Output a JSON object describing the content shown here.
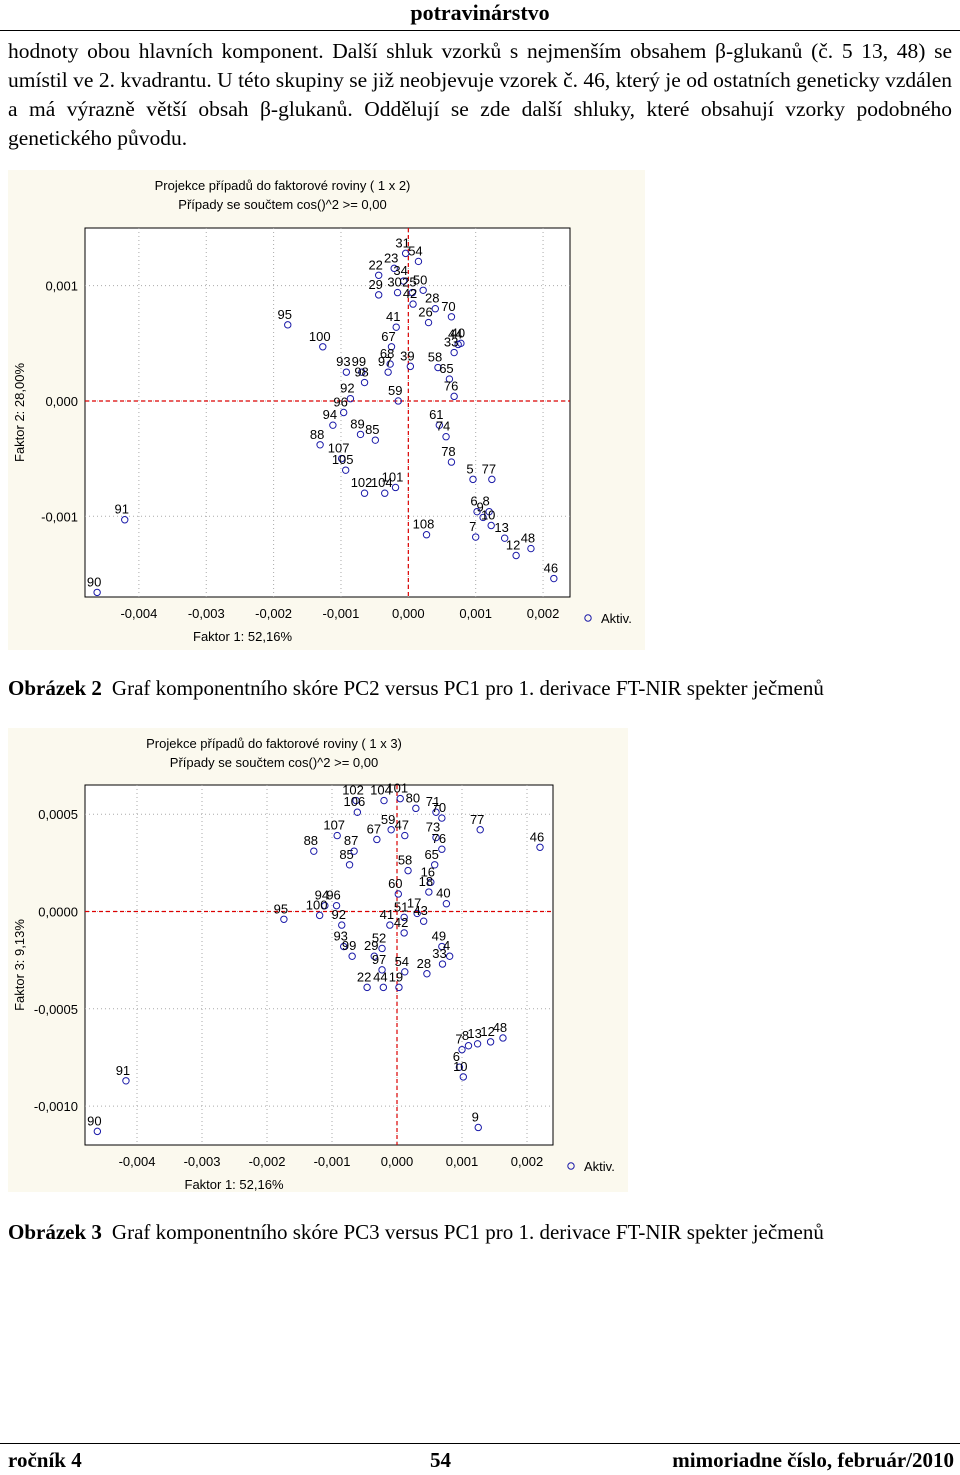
{
  "header": {
    "title": "potravinárstvo"
  },
  "paragraph": "hodnoty obou hlavních komponent. Další shluk vzorků s nejmenším obsahem β-glukanů (č. 5 13, 48) se umístil ve 2. kvadrantu. U této skupiny se již neobjevuje vzorek č. 46, který je od ostatních geneticky vzdálen a má výrazně větší obsah β-glukanů. Oddělují se zde další shluky, které obsahují vzorky podobného genetického původu.",
  "chart_data": [
    {
      "type": "scatter",
      "title": "Projekce případů do faktorové roviny      ( 1 x  2)",
      "subtitle": "Případy se součtem cos()^2  >=    0,00",
      "x_label": "Faktor 1: 52,16%",
      "y_label": "Faktor 2: 28,00%",
      "xlim": [
        -0.0048,
        0.0024
      ],
      "ylim": [
        -0.0017,
        0.0015
      ],
      "grid": true,
      "legend": "right",
      "xticks": [
        {
          "value": -0.004,
          "label": "-0,004"
        },
        {
          "value": -0.003,
          "label": "-0,003"
        },
        {
          "value": -0.002,
          "label": "-0,002"
        },
        {
          "value": -0.001,
          "label": "-0,001"
        },
        {
          "value": 0,
          "label": "0,000"
        },
        {
          "value": 0.001,
          "label": "0,001"
        },
        {
          "value": 0.002,
          "label": "0,002"
        }
      ],
      "yticks": [
        {
          "value": -0.001,
          "label": "-0,001"
        },
        {
          "value": 0,
          "label": "0,000"
        },
        {
          "value": 0.001,
          "label": "0,001"
        }
      ],
      "series": [
        {
          "name": "Aktiv.",
          "color": "#1a1aa8",
          "labels": [
            "31",
            "54",
            "22",
            "23",
            "34",
            "50",
            "29",
            "30",
            "25",
            "42",
            "28",
            "70",
            "26",
            "41",
            "40",
            "67",
            "44",
            "33",
            "68",
            "97",
            "39",
            "58",
            "65",
            "93",
            "99",
            "98",
            "76",
            "92",
            "59",
            "96",
            "94",
            "61",
            "89",
            "85",
            "74",
            "88",
            "107",
            "78",
            "105",
            "5",
            "77",
            "101",
            "102",
            "104",
            "6",
            "8",
            "9",
            "10",
            "108",
            "7",
            "13",
            "12",
            "48",
            "46",
            "91",
            "90",
            "95",
            "100"
          ],
          "x": [
            -4e-05,
            0.00015,
            -0.00044,
            -0.00021,
            -7e-05,
            0.00022,
            -0.00044,
            -0.00016,
            6e-05,
            7e-05,
            0.0004,
            0.00064,
            0.0003,
            -0.00018,
            0.00078,
            -0.00025,
            0.00074,
            0.00068,
            -0.00027,
            -0.0003,
            3e-05,
            0.00044,
            0.00061,
            -0.00092,
            -0.00069,
            -0.00065,
            0.00068,
            -0.00086,
            -0.00015,
            -0.00096,
            -0.00112,
            0.00046,
            -0.00071,
            -0.00049,
            0.00056,
            -0.00131,
            -0.00099,
            0.00064,
            -0.00093,
            0.00096,
            0.00124,
            -0.00019,
            -0.00065,
            -0.00035,
            0.00102,
            0.0012,
            0.00111,
            0.00123,
            0.00027,
            0.001,
            0.00143,
            0.0016,
            0.00182,
            0.00216,
            -0.00421,
            -0.00462,
            -0.00179,
            -0.00127
          ],
          "values": [
            0.00128,
            0.00121,
            0.00109,
            0.00115,
            0.00104,
            0.00096,
            0.00092,
            0.00094,
            0.00094,
            0.00084,
            0.0008,
            0.00073,
            0.00068,
            0.00064,
            0.0005,
            0.00047,
            0.00049,
            0.00042,
            0.00032,
            0.00025,
            0.0003,
            0.00029,
            0.00019,
            0.00025,
            0.00025,
            0.00016,
            4e-05,
            2e-05,
            0,
            -0.0001,
            -0.00021,
            -0.00021,
            -0.00029,
            -0.00034,
            -0.00031,
            -0.00038,
            -0.0005,
            -0.00053,
            -0.0006,
            -0.00068,
            -0.00068,
            -0.00075,
            -0.0008,
            -0.0008,
            -0.00096,
            -0.00096,
            -0.00101,
            -0.00108,
            -0.00116,
            -0.00118,
            -0.00119,
            -0.00134,
            -0.00128,
            -0.00154,
            -0.00103,
            -0.00166,
            0.00066,
            0.00047
          ]
        }
      ]
    },
    {
      "type": "scatter",
      "title": "Projekce případů do faktorové roviny      ( 1 x  3)",
      "subtitle": "Případy se součtem cos()^2  >=    0,00",
      "x_label": "Faktor 1: 52,16%",
      "y_label": "Faktor 3: 9,13%",
      "xlim": [
        -0.0048,
        0.0024
      ],
      "ylim": [
        -0.0012,
        0.00065
      ],
      "grid": true,
      "legend": "right",
      "xticks": [
        {
          "value": -0.004,
          "label": "-0,004"
        },
        {
          "value": -0.003,
          "label": "-0,003"
        },
        {
          "value": -0.002,
          "label": "-0,002"
        },
        {
          "value": -0.001,
          "label": "-0,001"
        },
        {
          "value": 0,
          "label": "0,000"
        },
        {
          "value": 0.001,
          "label": "0,001"
        },
        {
          "value": 0.002,
          "label": "0,002"
        }
      ],
      "yticks": [
        {
          "value": -0.001,
          "label": "-0,0010"
        },
        {
          "value": -0.0005,
          "label": "-0,0005"
        },
        {
          "value": 0,
          "label": "0,0000"
        },
        {
          "value": 0.0005,
          "label": "0,0005"
        }
      ],
      "series": [
        {
          "name": "Aktiv.",
          "color": "#1a1aa8",
          "labels": [
            "102",
            "104",
            "101",
            "106",
            "80",
            "71",
            "70",
            "77",
            "46",
            "107",
            "88",
            "59",
            "47",
            "67",
            "73",
            "76",
            "65",
            "85",
            "87",
            "58",
            "60",
            "16",
            "18",
            "40",
            "94",
            "96",
            "95",
            "100",
            "92",
            "51",
            "17",
            "43",
            "41",
            "42",
            "93",
            "52",
            "49",
            "29",
            "99",
            "4",
            "33",
            "97",
            "54",
            "28",
            "22",
            "44",
            "19",
            "48",
            "12",
            "13",
            "8",
            "7",
            "6",
            "10",
            "9",
            "91",
            "90"
          ],
          "x": [
            -0.00063,
            -0.0002,
            5e-05,
            -0.00061,
            0.00029,
            0.0006,
            0.00069,
            0.00128,
            0.0022,
            -0.00092,
            -0.00128,
            -9e-05,
            0.00012,
            -0.00031,
            0.0006,
            0.00069,
            0.00058,
            -0.00073,
            -0.00066,
            0.00017,
            2e-05,
            0.00052,
            0.00049,
            0.00076,
            -0.00111,
            -0.00093,
            -0.00174,
            -0.00119,
            -0.00085,
            0.00011,
            0.00031,
            0.00041,
            -0.00011,
            0.00011,
            -0.00082,
            -0.00023,
            0.00069,
            -0.00035,
            -0.00069,
            0.00081,
            0.0007,
            -0.00023,
            0.00012,
            0.00046,
            -0.00046,
            -0.00021,
            3e-05,
            0.00163,
            0.00144,
            0.00124,
            0.0011,
            0.001,
            0.00096,
            0.00102,
            0.00125,
            -0.00417,
            -0.00461
          ],
          "values": [
            0.00057,
            0.00057,
            0.00058,
            0.00051,
            0.00053,
            0.00051,
            0.00048,
            0.00042,
            0.00033,
            0.00039,
            0.00031,
            0.00042,
            0.00039,
            0.00037,
            0.00038,
            0.00032,
            0.00024,
            0.00024,
            0.00031,
            0.00021,
            9e-05,
            0.00015,
            0.0001,
            4e-05,
            3e-05,
            3e-05,
            -4e-05,
            -2e-05,
            -7e-05,
            -3e-05,
            -1e-05,
            -5e-05,
            -7e-05,
            -0.00011,
            -0.00018,
            -0.00019,
            -0.00018,
            -0.00023,
            -0.00023,
            -0.00023,
            -0.00027,
            -0.0003,
            -0.00031,
            -0.00032,
            -0.00039,
            -0.00039,
            -0.00039,
            -0.00065,
            -0.00067,
            -0.00068,
            -0.00069,
            -0.00071,
            -0.0008,
            -0.00085,
            -0.00111,
            -0.00087,
            -0.00113
          ]
        }
      ]
    }
  ],
  "captions": [
    {
      "label": "Obrázek 2",
      "text": "Graf komponentního skóre PC2 versus PC1 pro 1. derivace FT-NIR spekter ječmenů"
    },
    {
      "label": "Obrázek 3",
      "text": "Graf komponentního skóre PC3 versus PC1 pro 1. derivace FT-NIR spekter ječmenů"
    }
  ],
  "footer": {
    "left": "ročník 4",
    "center": "54",
    "right": "mimoriadne číslo, február/2010"
  }
}
